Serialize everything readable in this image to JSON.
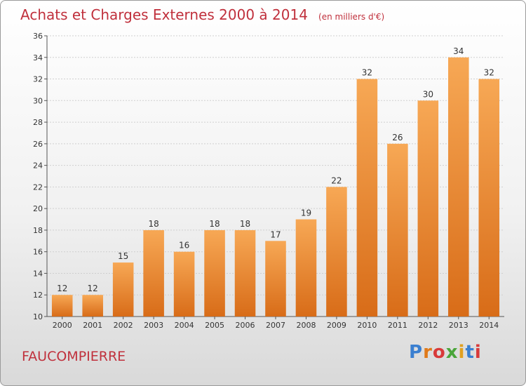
{
  "header": {
    "title": "Achats et Charges Externes 2000 à 2014",
    "subtitle": "(en milliers d'€)"
  },
  "footer": {
    "commune": "FAUCOMPIERRE",
    "logo_text": "Proxiti",
    "logo_colors": [
      "#3a7fd0",
      "#e07a1a",
      "#d83a3a",
      "#4aa53a",
      "#e0a020",
      "#3a7fd0",
      "#d83a3a"
    ]
  },
  "colors": {
    "title": "#c0303c",
    "bar_light": "#f7a855",
    "bar_dark": "#d86c18",
    "grid": "#cfcfcf",
    "axis": "#555555"
  },
  "chart_data": {
    "type": "bar",
    "title": "Achats et Charges Externes 2000 à 2014",
    "subtitle": "(en milliers d'€)",
    "categories": [
      "2000",
      "2001",
      "2002",
      "2003",
      "2004",
      "2005",
      "2006",
      "2007",
      "2008",
      "2009",
      "2010",
      "2011",
      "2012",
      "2013",
      "2014"
    ],
    "values": [
      12,
      12,
      15,
      18,
      16,
      18,
      18,
      17,
      19,
      22,
      32,
      26,
      30,
      34,
      32
    ],
    "ylim": [
      10,
      36
    ],
    "yticks": [
      10,
      12,
      14,
      16,
      18,
      20,
      22,
      24,
      26,
      28,
      30,
      32,
      34,
      36
    ],
    "grid": true,
    "data_labels": true
  }
}
